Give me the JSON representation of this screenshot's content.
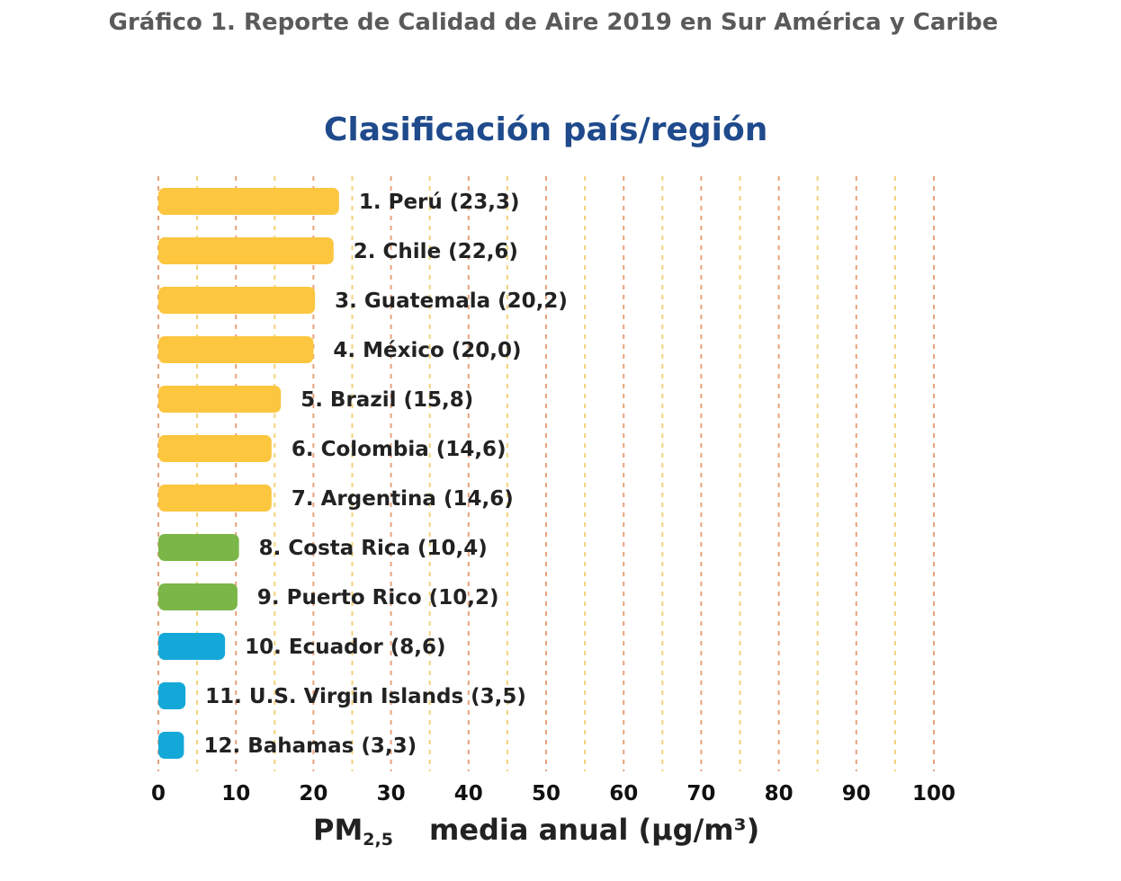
{
  "figure": {
    "caption": "Gráfico 1. Reporte de Calidad de Aire 2019 en Sur América y Caribe"
  },
  "chart_data": {
    "type": "bar",
    "orientation": "horizontal",
    "title": "Clasificación país/región",
    "xlabel": {
      "quantity": "PM",
      "subscript": "2,5",
      "text": "media anual (μg/m³)"
    },
    "xlim": [
      0,
      100
    ],
    "xticks": [
      0,
      10,
      20,
      30,
      40,
      50,
      60,
      70,
      80,
      90,
      100
    ],
    "grid": true,
    "categories": [
      "Perú",
      "Chile",
      "Guatemala",
      "México",
      "Brazil",
      "Colombia",
      "Argentina",
      "Costa Rica",
      "Puerto Rico",
      "Ecuador",
      "U.S. Virgin Islands",
      "Bahamas"
    ],
    "labels": [
      "1. Perú (23,3)",
      "2. Chile (22,6)",
      "3. Guatemala (20,2)",
      "4. México (20,0)",
      "5. Brazil (15,8)",
      "6. Colombia (14,6)",
      "7. Argentina (14,6)",
      "8. Costa Rica (10,4)",
      "9. Puerto Rico (10,2)",
      "10. Ecuador (8,6)",
      "11. U.S. Virgin Islands (3,5)",
      "12. Bahamas (3,3)"
    ],
    "values": [
      23.3,
      22.6,
      20.2,
      20.0,
      15.8,
      14.6,
      14.6,
      10.4,
      10.2,
      8.6,
      3.5,
      3.3
    ],
    "colors": [
      "#fcc63f",
      "#fcc63f",
      "#fcc63f",
      "#fcc63f",
      "#fcc63f",
      "#fcc63f",
      "#fcc63f",
      "#7ab648",
      "#7ab648",
      "#14a8d8",
      "#14a8d8",
      "#14a8d8"
    ]
  },
  "style": {
    "grid_color_major": "#e8a27d",
    "grid_color_minor": "#f2d27a",
    "title_color": "#1f4a8c"
  }
}
